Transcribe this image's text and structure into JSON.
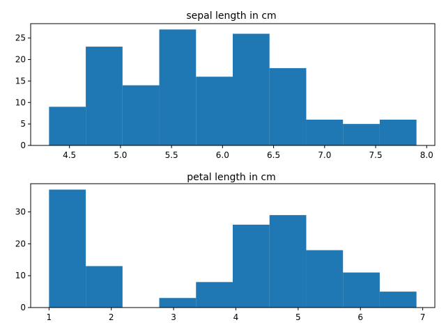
{
  "colors": {
    "bar": "#1f77b4"
  },
  "chart_data": [
    {
      "type": "bar",
      "title": "sepal length in cm",
      "bin_edges": [
        4.3,
        4.66,
        5.02,
        5.38,
        5.74,
        6.1,
        6.46,
        6.82,
        7.18,
        7.54,
        7.9
      ],
      "values": [
        9,
        23,
        14,
        27,
        16,
        26,
        18,
        6,
        5,
        6
      ],
      "xlim": [
        4.12,
        8.08
      ],
      "ylim": [
        0,
        28.35
      ],
      "xticks": [
        4.5,
        5.0,
        5.5,
        6.0,
        6.5,
        7.0,
        7.5,
        8.0
      ],
      "xtick_labels": [
        "4.5",
        "5.0",
        "5.5",
        "6.0",
        "6.5",
        "7.0",
        "7.5",
        "8.0"
      ],
      "yticks": [
        0,
        5,
        10,
        15,
        20,
        25
      ],
      "ytick_labels": [
        "0",
        "5",
        "10",
        "15",
        "20",
        "25"
      ],
      "grid": false
    },
    {
      "type": "bar",
      "title": "petal length in cm",
      "bin_edges": [
        1.0,
        1.59,
        2.18,
        2.77,
        3.36,
        3.95,
        4.54,
        5.13,
        5.72,
        6.31,
        6.9
      ],
      "values": [
        37,
        13,
        0,
        3,
        8,
        26,
        29,
        18,
        11,
        5
      ],
      "xlim": [
        0.705,
        7.195
      ],
      "ylim": [
        0,
        38.85
      ],
      "xticks": [
        1,
        2,
        3,
        4,
        5,
        6,
        7
      ],
      "xtick_labels": [
        "1",
        "2",
        "3",
        "4",
        "5",
        "6",
        "7"
      ],
      "yticks": [
        0,
        10,
        20,
        30
      ],
      "ytick_labels": [
        "0",
        "10",
        "20",
        "30"
      ],
      "grid": false
    }
  ]
}
